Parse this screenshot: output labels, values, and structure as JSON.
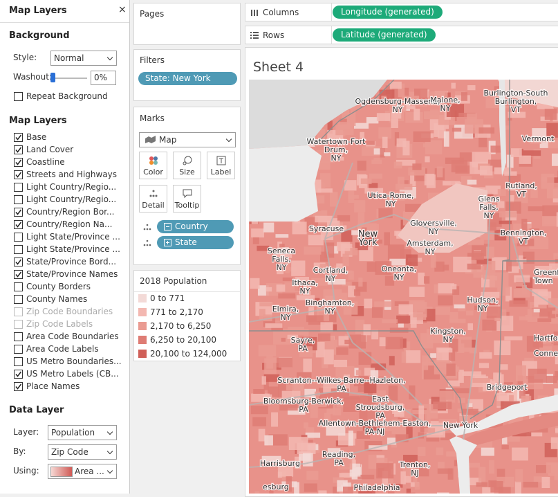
{
  "map_layers_panel": {
    "title": "Map Layers",
    "close": "×",
    "background": {
      "heading": "Background",
      "style_label": "Style:",
      "style_value": "Normal",
      "washout_label": "Washout:",
      "washout_value": "0%",
      "repeat_label": "Repeat Background",
      "repeat_checked": false
    },
    "layers_heading": "Map Layers",
    "layers": [
      {
        "label": "Base",
        "checked": true,
        "enabled": true
      },
      {
        "label": "Land Cover",
        "checked": true,
        "enabled": true
      },
      {
        "label": "Coastline",
        "checked": true,
        "enabled": true
      },
      {
        "label": "Streets and Highways",
        "checked": true,
        "enabled": true
      },
      {
        "label": "Light Country/Regio...",
        "checked": false,
        "enabled": true
      },
      {
        "label": "Light Country/Regio...",
        "checked": false,
        "enabled": true
      },
      {
        "label": "Country/Region Bor...",
        "checked": true,
        "enabled": true
      },
      {
        "label": "Country/Region Na...",
        "checked": true,
        "enabled": true
      },
      {
        "label": "Light State/Province ...",
        "checked": false,
        "enabled": true
      },
      {
        "label": "Light State/Province ...",
        "checked": false,
        "enabled": true
      },
      {
        "label": "State/Province Bord...",
        "checked": true,
        "enabled": true
      },
      {
        "label": "State/Province Names",
        "checked": true,
        "enabled": true
      },
      {
        "label": "County Borders",
        "checked": false,
        "enabled": true
      },
      {
        "label": "County Names",
        "checked": false,
        "enabled": true
      },
      {
        "label": "Zip Code Boundaries",
        "checked": false,
        "enabled": false
      },
      {
        "label": "Zip Code Labels",
        "checked": false,
        "enabled": false
      },
      {
        "label": "Area Code Boundaries",
        "checked": false,
        "enabled": true
      },
      {
        "label": "Area Code Labels",
        "checked": false,
        "enabled": true
      },
      {
        "label": "US Metro Boundaries...",
        "checked": false,
        "enabled": true
      },
      {
        "label": "US Metro Labels (CB...",
        "checked": true,
        "enabled": true
      },
      {
        "label": "Place Names",
        "checked": true,
        "enabled": true
      }
    ],
    "data_layer": {
      "heading": "Data Layer",
      "layer_label": "Layer:",
      "layer_value": "Population",
      "by_label": "By:",
      "by_value": "Zip Code",
      "using_label": "Using:",
      "using_value": "Area ..."
    }
  },
  "pages": {
    "title": "Pages"
  },
  "filters": {
    "title": "Filters",
    "pills": [
      "State: New York"
    ]
  },
  "marks": {
    "title": "Marks",
    "type": "Map",
    "buttons": [
      "Color",
      "Size",
      "Label",
      "Detail",
      "Tooltip"
    ],
    "fields": [
      "Country",
      "State"
    ]
  },
  "legend": {
    "title": "2018 Population",
    "items": [
      {
        "label": "0 to 771",
        "color": "#f3dad7"
      },
      {
        "label": "771 to 2,170",
        "color": "#f3b8b1"
      },
      {
        "label": "2,170 to 6,250",
        "color": "#ea9b92"
      },
      {
        "label": "6,250 to 20,100",
        "color": "#de7c74"
      },
      {
        "label": "20,100 to 124,000",
        "color": "#d06059"
      }
    ]
  },
  "shelves": {
    "columns_label": "Columns",
    "columns_pill": "Longitude (generated)",
    "rows_label": "Rows",
    "rows_pill": "Latitude (generated)"
  },
  "sheet": {
    "title": "Sheet 4",
    "labels": [
      {
        "lines": [
          "Ogdensburg-Massena,",
          "NY"
        ]
      },
      {
        "lines": [
          "Malone,",
          "NY"
        ]
      },
      {
        "lines": [
          "Burlington-South",
          "Burlington,",
          "VT"
        ]
      },
      {
        "lines": [
          "Watertown-Fort",
          "Drum,",
          "NY"
        ]
      },
      {
        "lines": [
          "Vermont"
        ]
      },
      {
        "lines": [
          "Utica-Rome,",
          "NY"
        ]
      },
      {
        "lines": [
          "Glens",
          "Falls,",
          "NY"
        ]
      },
      {
        "lines": [
          "Rutland,",
          "VT"
        ]
      },
      {
        "lines": [
          "Syracuse"
        ]
      },
      {
        "lines": [
          "New",
          "York"
        ]
      },
      {
        "lines": [
          "Gloversville,",
          "NY"
        ]
      },
      {
        "lines": [
          "Amsterdam,",
          "NY"
        ]
      },
      {
        "lines": [
          "Bennington,",
          "VT"
        ]
      },
      {
        "lines": [
          "Seneca",
          "Falls,",
          "NY"
        ]
      },
      {
        "lines": [
          "Cortland,",
          "NY"
        ]
      },
      {
        "lines": [
          "Oneonta,",
          "NY"
        ]
      },
      {
        "lines": [
          "Greenf",
          "Town"
        ]
      },
      {
        "lines": [
          "Ithaca,",
          "NY"
        ]
      },
      {
        "lines": [
          "Binghamton,",
          "NY"
        ]
      },
      {
        "lines": [
          "Hudson,",
          "NY"
        ]
      },
      {
        "lines": [
          "Elmira,",
          "NY"
        ]
      },
      {
        "lines": [
          "Kingston,",
          "NY"
        ]
      },
      {
        "lines": [
          "Hartfor"
        ]
      },
      {
        "lines": [
          "Connecti"
        ]
      },
      {
        "lines": [
          "Sayre,",
          "PA"
        ]
      },
      {
        "lines": [
          "Scranton--Wilkes-Barre--Hazleton,",
          "PA"
        ]
      },
      {
        "lines": [
          "Bridgeport"
        ]
      },
      {
        "lines": [
          "East",
          "Stroudsburg,",
          "PA"
        ]
      },
      {
        "lines": [
          "Bloomsburg-Berwick,",
          "PA"
        ]
      },
      {
        "lines": [
          "New York"
        ]
      },
      {
        "lines": [
          "Allentown-Bethlehem-Easton,",
          "PA-NJ"
        ]
      },
      {
        "lines": [
          "Reading,",
          "PA"
        ]
      },
      {
        "lines": [
          "Harrisburg"
        ]
      },
      {
        "lines": [
          "Trenton,",
          "NJ"
        ]
      },
      {
        "lines": [
          "Philadelphia"
        ]
      },
      {
        "lines": [
          "esburg"
        ]
      }
    ]
  }
}
